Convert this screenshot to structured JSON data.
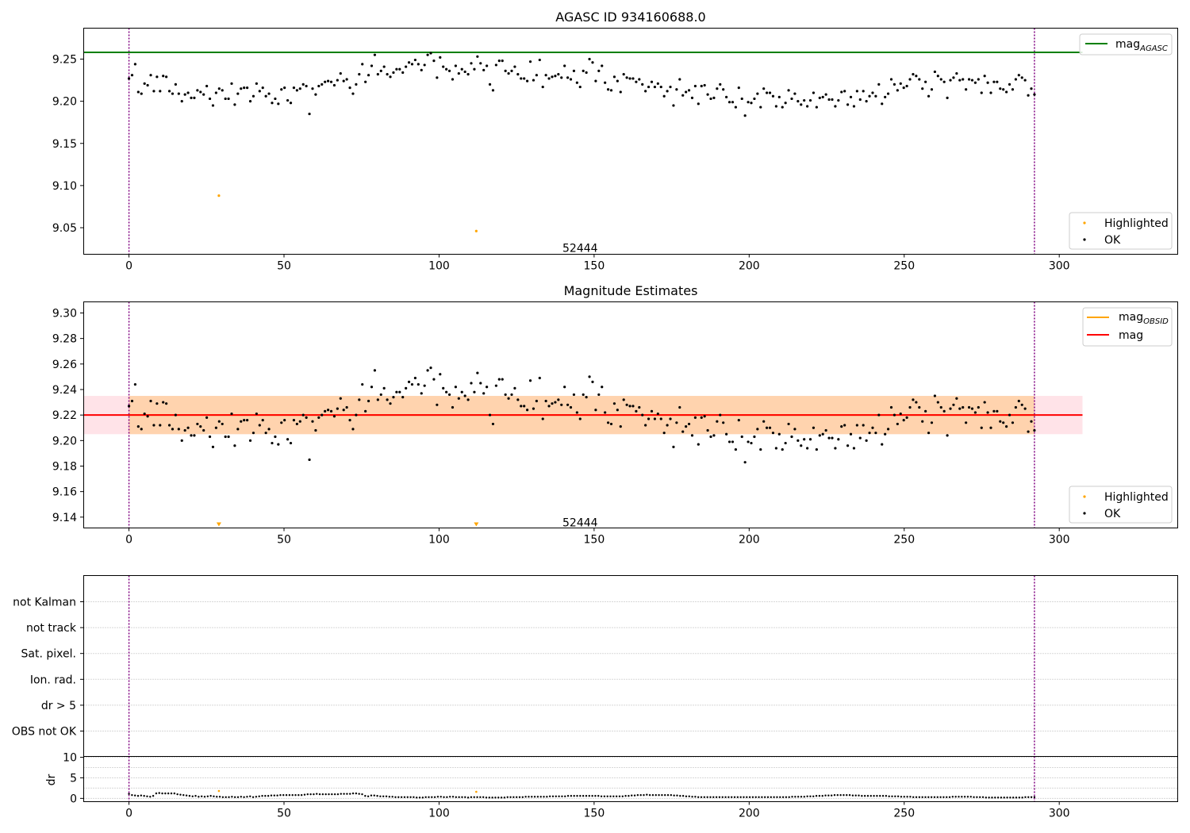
{
  "colors": {
    "agasc_line": "#008000",
    "obs_line": "#ff0000",
    "obsid_line": "#ffa500",
    "highlighted": "#ffa500",
    "ok": "#000000",
    "vline": "#800080",
    "band_red": "#ffc0cb",
    "band_orange": "#ffa500",
    "grid": "#b0b0b0"
  },
  "chart_data": [
    {
      "type": "scatter",
      "title": "AGASC ID 934160688.0",
      "xlim": [
        -14.6,
        338.2
      ],
      "ylim": [
        9.0185,
        9.2867
      ],
      "xticks": [
        0,
        50,
        100,
        150,
        200,
        250,
        300
      ],
      "yticks": [
        9.05,
        9.1,
        9.15,
        9.2,
        9.25
      ],
      "ytick_labels": [
        "9.05",
        "9.10",
        "9.15",
        "9.20",
        "9.25"
      ],
      "obsid_label": "52444",
      "obsid_label_pos": [
        145.5,
        9.026
      ],
      "obs_bounds": [
        0,
        292
      ],
      "hline": {
        "y": 9.258,
        "x_end": 307.5
      },
      "legend_top": [
        {
          "label": "mag",
          "sub": "AGASC",
          "kind": "line",
          "color": "agasc_line"
        }
      ],
      "legend_bottom": [
        {
          "label": "Highlighted",
          "kind": "dot",
          "color": "highlighted"
        },
        {
          "label": "OK",
          "kind": "dot",
          "color": "ok"
        }
      ],
      "highlighted": [
        [
          29,
          9.088
        ],
        [
          112,
          9.046
        ]
      ],
      "ok_x": [
        0,
        292
      ],
      "ok_y": [
        9.227,
        9.231,
        9.244,
        9.211,
        9.209,
        9.221,
        9.219,
        9.231,
        9.212,
        9.229,
        9.212,
        9.23,
        9.229,
        9.212,
        9.209,
        9.22,
        9.209,
        9.2,
        9.208,
        9.21,
        9.204,
        9.204,
        9.213,
        9.211,
        9.208,
        9.218,
        9.203,
        9.195,
        9.21,
        9.215,
        9.213,
        9.203,
        9.203,
        9.221,
        9.196,
        9.209,
        9.215,
        9.216,
        9.216,
        9.2,
        9.206,
        9.221,
        9.212,
        9.216,
        9.206,
        9.209,
        9.198,
        9.203,
        9.197,
        9.214,
        9.216,
        9.201,
        9.198,
        9.216,
        9.213,
        9.215,
        9.22,
        9.218,
        9.185,
        9.215,
        9.208,
        9.218,
        9.22,
        9.223,
        9.224,
        9.223,
        9.219,
        9.225,
        9.233,
        9.224,
        9.226,
        9.216,
        9.209,
        9.22,
        9.232,
        9.244,
        9.223,
        9.231,
        9.242,
        9.255,
        9.232,
        9.236,
        9.241,
        9.232,
        9.229,
        9.234,
        9.238,
        9.238,
        9.234,
        9.241,
        9.246,
        9.244,
        9.249,
        9.244,
        9.237,
        9.243,
        9.255,
        9.257,
        9.248,
        9.228,
        9.252,
        9.241,
        9.238,
        9.236,
        9.226,
        9.242,
        9.233,
        9.238,
        9.235,
        9.232,
        9.245,
        9.238,
        9.253,
        9.245,
        9.237,
        9.242,
        9.22,
        9.213,
        9.243,
        9.248,
        9.248,
        9.236,
        9.233,
        9.236,
        9.241,
        9.232,
        9.227,
        9.227,
        9.224,
        9.247,
        9.225,
        9.231,
        9.249,
        9.217,
        9.231,
        9.227,
        9.229,
        9.23,
        9.232,
        9.228,
        9.242,
        9.228,
        9.226,
        9.236,
        9.222,
        9.217,
        9.236,
        9.234,
        9.25,
        9.246,
        9.224,
        9.236,
        9.242,
        9.222,
        9.214,
        9.213,
        9.229,
        9.224,
        9.211,
        9.232,
        9.228,
        9.227,
        9.227,
        9.223,
        9.226,
        9.22,
        9.212,
        9.217,
        9.223,
        9.217,
        9.221,
        9.217,
        9.206,
        9.212,
        9.217,
        9.195,
        9.214,
        9.226,
        9.207,
        9.211,
        9.213,
        9.204,
        9.218,
        9.197,
        9.218,
        9.219,
        9.208,
        9.203,
        9.204,
        9.215,
        9.22,
        9.214,
        9.205,
        9.199,
        9.199,
        9.193,
        9.216,
        9.203,
        9.183,
        9.199,
        9.198,
        9.203,
        9.209,
        9.193,
        9.215,
        9.21,
        9.21,
        9.206,
        9.194,
        9.205,
        9.193,
        9.198,
        9.213,
        9.203,
        9.209,
        9.2,
        9.196,
        9.201,
        9.194,
        9.201,
        9.21,
        9.193,
        9.204,
        9.205,
        9.208,
        9.202,
        9.202,
        9.194,
        9.201,
        9.211,
        9.212,
        9.196,
        9.205,
        9.194,
        9.212,
        9.202,
        9.212,
        9.2,
        9.206,
        9.21,
        9.206,
        9.22,
        9.197,
        9.205,
        9.209,
        9.226,
        9.22,
        9.213,
        9.221,
        9.216,
        9.218,
        9.226,
        9.232,
        9.23,
        9.226,
        9.215,
        9.223,
        9.206,
        9.214,
        9.235,
        9.23,
        9.226,
        9.223,
        9.204,
        9.225,
        9.228,
        9.233,
        9.225,
        9.226,
        9.214,
        9.226,
        9.225,
        9.222,
        9.226,
        9.21,
        9.23,
        9.222,
        9.21,
        9.223,
        9.223,
        9.215,
        9.214,
        9.211,
        9.22,
        9.214,
        9.226,
        9.231,
        9.228,
        9.225,
        9.207,
        9.215,
        9.208
      ]
    },
    {
      "type": "scatter",
      "title": "Magnitude Estimates",
      "xlim": [
        -14.6,
        338.2
      ],
      "ylim": [
        9.1315,
        9.3087
      ],
      "xticks": [
        0,
        50,
        100,
        150,
        200,
        250,
        300
      ],
      "yticks": [
        9.14,
        9.16,
        9.18,
        9.2,
        9.22,
        9.24,
        9.26,
        9.28,
        9.3
      ],
      "ytick_labels": [
        "9.14",
        "9.16",
        "9.18",
        "9.20",
        "9.22",
        "9.24",
        "9.26",
        "9.28",
        "9.30"
      ],
      "obsid_label": "52444",
      "obsid_label_pos": [
        145.5,
        9.1358
      ],
      "obs_bounds": [
        0,
        292
      ],
      "mag": {
        "value": 9.22,
        "band": [
          9.205,
          9.235
        ],
        "x_range": [
          -14.6,
          307.5
        ]
      },
      "mag_obsid": {
        "value": 9.22,
        "band": [
          9.205,
          9.235
        ],
        "x_range": [
          0,
          292
        ]
      },
      "legend_top": [
        {
          "label": "mag",
          "sub": "OBSID",
          "kind": "line",
          "color": "obsid_line"
        },
        {
          "label": "mag",
          "sub": "",
          "kind": "line",
          "color": "obs_line"
        }
      ],
      "legend_bottom": [
        {
          "label": "Highlighted",
          "kind": "dot",
          "color": "highlighted"
        },
        {
          "label": "OK",
          "kind": "dot",
          "color": "ok"
        }
      ],
      "highlighted_offscale": [
        29,
        112
      ],
      "ok_x": [
        0,
        292
      ],
      "ok_y": "same as panel 1"
    },
    {
      "type": "scatter",
      "title": "",
      "xlim": [
        -14.6,
        338.2
      ],
      "flag_labels": [
        "not Kalman",
        "not track",
        "Sat. pixel.",
        "Ion. rad.",
        "dr > 5",
        "OBS not OK"
      ],
      "obs_bounds": [
        0,
        292
      ]
    },
    {
      "type": "scatter",
      "title": "",
      "ylabel": "dr",
      "xlim": [
        -14.6,
        338.2
      ],
      "ylim": [
        -0.8,
        10.2
      ],
      "xticks": [
        0,
        50,
        100,
        150,
        200,
        250,
        300
      ],
      "yticks": [
        0,
        5,
        10
      ],
      "ytick_labels": [
        "0",
        "5",
        "10"
      ],
      "obs_bounds": [
        0,
        292
      ],
      "highlighted": [
        [
          29,
          1.8
        ],
        [
          112,
          1.6
        ]
      ],
      "dr_x": [
        0,
        292
      ],
      "dr_y": [
        1.1,
        0.8,
        0.7,
        0.6,
        0.7,
        0.6,
        0.5,
        0.4,
        0.6,
        1.2,
        1.3,
        1.2,
        1.2,
        1.2,
        1.2,
        1.2,
        1.0,
        0.9,
        0.8,
        0.7,
        0.6,
        0.5,
        0.6,
        0.4,
        0.5,
        0.4,
        0.5,
        0.6,
        0.5,
        0.4,
        0.4,
        0.3,
        0.3,
        0.3,
        0.4,
        0.3,
        0.3,
        0.4,
        0.3,
        0.4,
        0.5,
        0.3,
        0.4,
        0.5,
        0.6,
        0.6,
        0.6,
        0.7,
        0.7,
        0.7,
        0.8,
        0.8,
        0.8,
        0.8,
        0.8,
        0.8,
        0.8,
        0.8,
        0.9,
        1.0,
        1.0,
        1.0,
        1.1,
        1.0,
        1.0,
        1.0,
        1.0,
        1.0,
        1.0,
        1.0,
        1.1,
        1.1,
        1.1,
        1.1,
        1.2,
        1.2,
        1.1,
        1.0,
        0.6,
        0.5,
        0.7,
        0.7,
        0.6,
        0.5,
        0.5,
        0.5,
        0.4,
        0.4,
        0.3,
        0.3,
        0.3,
        0.3,
        0.3,
        0.3,
        0.3,
        0.2,
        0.2,
        0.2,
        0.3,
        0.3,
        0.3,
        0.3,
        0.4,
        0.4,
        0.3,
        0.3,
        0.4,
        0.4,
        0.3,
        0.3,
        0.3,
        0.3,
        0.2,
        0.3,
        0.3,
        0.3,
        0.3,
        0.3,
        0.2,
        0.2,
        0.2,
        0.2,
        0.2,
        0.2,
        0.2,
        0.3,
        0.3,
        0.3,
        0.3,
        0.3,
        0.3,
        0.4,
        0.4,
        0.4,
        0.4,
        0.4,
        0.4,
        0.4,
        0.4,
        0.5,
        0.5,
        0.5,
        0.5,
        0.5,
        0.5,
        0.6,
        0.6,
        0.6,
        0.6,
        0.6,
        0.6,
        0.6,
        0.6,
        0.6,
        0.6,
        0.6,
        0.5,
        0.5,
        0.5,
        0.5,
        0.5,
        0.5,
        0.5,
        0.5,
        0.6,
        0.6,
        0.7,
        0.7,
        0.8,
        0.8,
        0.8,
        0.9,
        0.8,
        0.8,
        0.8,
        0.8,
        0.8,
        0.8,
        0.8,
        0.8,
        0.7,
        0.7,
        0.6,
        0.6,
        0.5,
        0.5,
        0.4,
        0.4,
        0.3,
        0.3,
        0.3,
        0.3,
        0.3,
        0.3,
        0.3,
        0.3,
        0.3,
        0.3,
        0.3,
        0.3,
        0.3,
        0.3,
        0.3,
        0.3,
        0.3,
        0.3,
        0.3,
        0.3,
        0.3,
        0.3,
        0.3,
        0.3,
        0.3,
        0.3,
        0.3,
        0.3,
        0.3,
        0.3,
        0.3,
        0.4,
        0.4,
        0.4,
        0.4,
        0.4,
        0.5,
        0.5,
        0.5,
        0.6,
        0.6,
        0.6,
        0.7,
        0.7,
        0.7,
        0.8,
        0.8,
        0.8,
        0.8,
        0.8,
        0.8,
        0.7,
        0.7,
        0.7,
        0.6,
        0.6,
        0.6,
        0.6,
        0.6,
        0.6,
        0.6,
        0.6,
        0.6,
        0.5,
        0.5,
        0.5,
        0.5,
        0.4,
        0.4,
        0.4,
        0.4,
        0.3,
        0.3,
        0.3,
        0.3,
        0.3,
        0.3,
        0.3,
        0.3,
        0.3,
        0.3,
        0.3,
        0.3,
        0.3,
        0.4,
        0.4,
        0.4,
        0.4,
        0.4,
        0.4,
        0.4,
        0.3,
        0.3,
        0.3,
        0.3,
        0.2,
        0.2,
        0.2,
        0.2,
        0.2,
        0.2,
        0.2,
        0.2,
        0.2,
        0.2,
        0.2,
        0.2,
        0.2,
        0.3,
        0.3,
        0.3,
        0.3
      ]
    }
  ]
}
